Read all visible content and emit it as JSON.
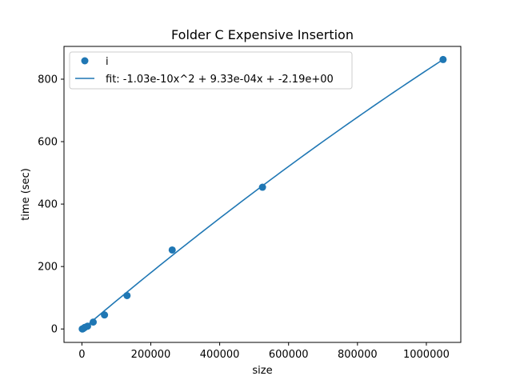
{
  "chart_data": {
    "type": "scatter",
    "title": "Folder C Expensive Insertion",
    "xlabel": "size",
    "ylabel": "time (sec)",
    "xlim": [
      -52000,
      1100000
    ],
    "ylim": [
      -43,
      905
    ],
    "x_ticks": [
      0,
      200000,
      400000,
      600000,
      800000,
      1000000
    ],
    "x_tick_labels": [
      "0",
      "200000",
      "400000",
      "600000",
      "800000",
      "1000000"
    ],
    "y_ticks": [
      0,
      200,
      400,
      600,
      800
    ],
    "y_tick_labels": [
      "0",
      "200",
      "400",
      "600",
      "800"
    ],
    "legend_position": "top-left",
    "series": [
      {
        "name": "i",
        "kind": "scatter",
        "color": "#1f77b4",
        "points": [
          [
            1024,
            0
          ],
          [
            2048,
            0.3
          ],
          [
            4096,
            1.5
          ],
          [
            8192,
            5
          ],
          [
            16384,
            9
          ],
          [
            32768,
            22
          ],
          [
            65536,
            45
          ],
          [
            131072,
            107
          ],
          [
            262144,
            253
          ],
          [
            524288,
            454
          ],
          [
            1048576,
            863
          ]
        ]
      },
      {
        "name": "fit: -1.03e-10x^2 + 9.33e-04x + -2.19e+00",
        "kind": "line",
        "color": "#1f77b4",
        "coefficients": {
          "a": -1.03e-10,
          "b": 0.000933,
          "c": -2.19
        },
        "x_range": [
          1024,
          1048576
        ]
      }
    ]
  }
}
